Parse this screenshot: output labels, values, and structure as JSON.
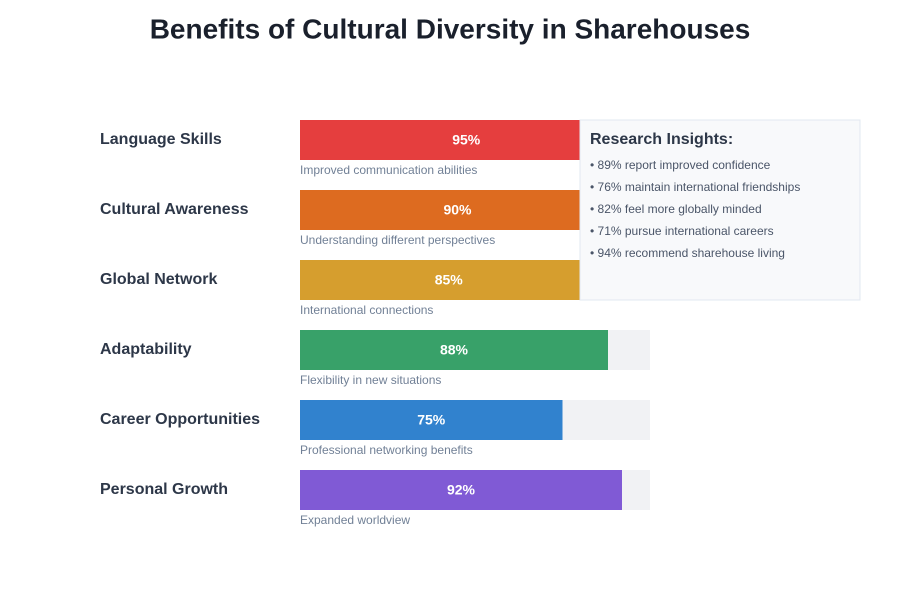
{
  "chart_data": {
    "type": "bar",
    "orientation": "horizontal",
    "title": "Benefits of Cultural Diversity in Sharehouses",
    "categories": [
      "Language Skills",
      "Cultural Awareness",
      "Global Network",
      "Adaptability",
      "Career Opportunities",
      "Personal Growth"
    ],
    "values": [
      95,
      90,
      85,
      88,
      75,
      92
    ],
    "value_labels": [
      "95%",
      "90%",
      "85%",
      "88%",
      "75%",
      "92%"
    ],
    "descriptions": [
      "Improved communication abilities",
      "Understanding different perspectives",
      "International connections",
      "Flexibility in new situations",
      "Professional networking benefits",
      "Expanded worldview"
    ],
    "colors": [
      "#e53e3e",
      "#dd6b20",
      "#d69e2e",
      "#38a169",
      "#3182ce",
      "#805ad5"
    ],
    "xlim": [
      0,
      100
    ],
    "insights": {
      "title": "Research Insights:",
      "items": [
        "• 89% report improved confidence",
        "• 76% maintain international friendships",
        "• 82% feel more globally minded",
        "• 71% pursue international careers",
        "• 94% recommend sharehouse living"
      ]
    }
  }
}
